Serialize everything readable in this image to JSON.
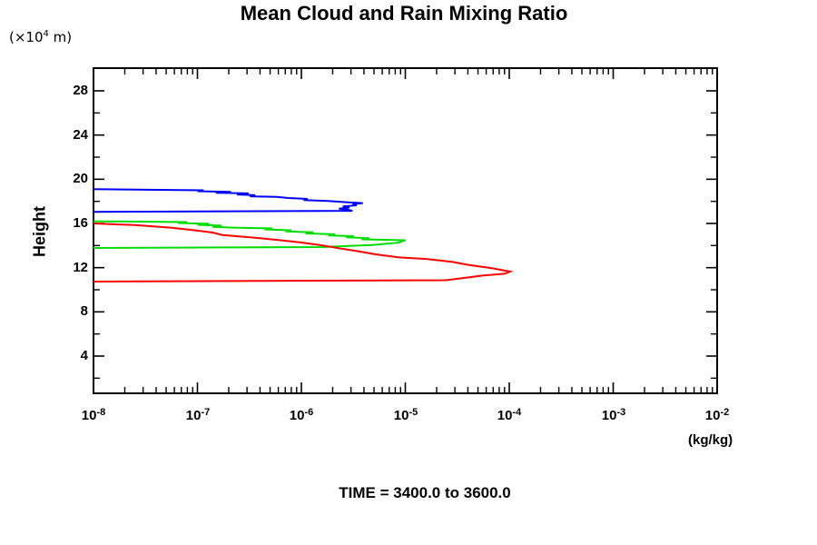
{
  "chart_data": {
    "type": "line",
    "title": "Mean Cloud and Rain Mixing Ratio",
    "annotation": "TIME = 3400.0 to 3600.0",
    "y_axis": {
      "label": "Height",
      "scale_prefix": "(×10",
      "scale_exp": "4",
      "scale_suffix": " m)",
      "major_ticks": [
        4,
        8,
        12,
        16,
        20,
        24,
        28
      ],
      "minor_ticks": [
        2,
        6,
        10,
        14,
        18,
        22,
        26
      ],
      "range": [
        0.6,
        30
      ]
    },
    "x_axis": {
      "unit_label": "(kg/kg)",
      "scale": "log",
      "base": "10",
      "tick_exponents": [
        -8,
        -7,
        -6,
        -5,
        -4,
        -3,
        -2
      ],
      "minor_multiples": [
        2,
        3,
        4,
        5,
        6,
        7,
        8,
        9
      ],
      "range": [
        1e-08,
        0.01
      ]
    },
    "axis_color": "#000000",
    "series": [
      {
        "name": "blue",
        "color": "#0000ff",
        "points": [
          [
            1e-08,
            19.1
          ],
          [
            1.15e-07,
            19.0
          ],
          [
            1e-07,
            18.92
          ],
          [
            2.1e-07,
            18.86
          ],
          [
            1.5e-07,
            18.78
          ],
          [
            3.1e-07,
            18.72
          ],
          [
            2.4e-07,
            18.62
          ],
          [
            3.6e-07,
            18.56
          ],
          [
            3.2e-07,
            18.46
          ],
          [
            5.8e-07,
            18.4
          ],
          [
            7.5e-07,
            18.3
          ],
          [
            1.15e-06,
            18.22
          ],
          [
            1.05e-06,
            18.12
          ],
          [
            1.8e-06,
            18.04
          ],
          [
            2.5e-06,
            17.94
          ],
          [
            3.9e-06,
            17.84
          ],
          [
            3.1e-06,
            17.74
          ],
          [
            3.4e-06,
            17.64
          ],
          [
            2.5e-06,
            17.54
          ],
          [
            2.9e-06,
            17.44
          ],
          [
            2.3e-06,
            17.34
          ],
          [
            2.8e-06,
            17.24
          ],
          [
            3.1e-06,
            17.14
          ],
          [
            1e-08,
            17.05
          ]
        ]
      },
      {
        "name": "green",
        "color": "#00dd00",
        "points": [
          [
            1e-08,
            16.2
          ],
          [
            8e-08,
            16.12
          ],
          [
            6.5e-08,
            16.04
          ],
          [
            1.3e-07,
            15.97
          ],
          [
            1e-07,
            15.88
          ],
          [
            1.7e-07,
            15.8
          ],
          [
            1.4e-07,
            15.7
          ],
          [
            2.2e-07,
            15.62
          ],
          [
            5.3e-07,
            15.55
          ],
          [
            4.4e-07,
            15.46
          ],
          [
            8e-07,
            15.38
          ],
          [
            7e-07,
            15.28
          ],
          [
            1.3e-06,
            15.2
          ],
          [
            1.1e-06,
            15.1
          ],
          [
            2.1e-06,
            15.02
          ],
          [
            1.8e-06,
            14.92
          ],
          [
            3.2e-06,
            14.84
          ],
          [
            2.7e-06,
            14.74
          ],
          [
            4.5e-06,
            14.66
          ],
          [
            3.8e-06,
            14.56
          ],
          [
            1e-05,
            14.48
          ],
          [
            8.5e-06,
            14.26
          ],
          [
            4.8e-06,
            14.04
          ],
          [
            2.4e-06,
            13.94
          ],
          [
            1.6e-06,
            13.86
          ],
          [
            1e-08,
            13.78
          ]
        ]
      },
      {
        "name": "red",
        "color": "#ff0000",
        "points": [
          [
            1e-08,
            16.0
          ],
          [
            2.5e-08,
            15.85
          ],
          [
            5.5e-08,
            15.62
          ],
          [
            9e-08,
            15.4
          ],
          [
            1.4e-07,
            15.18
          ],
          [
            1.74e-07,
            14.96
          ],
          [
            3.5e-07,
            14.72
          ],
          [
            6e-07,
            14.5
          ],
          [
            9.6e-07,
            14.3
          ],
          [
            1.5e-06,
            14.05
          ],
          [
            2.3e-06,
            13.76
          ],
          [
            3.4e-06,
            13.5
          ],
          [
            5.1e-06,
            13.21
          ],
          [
            8.7e-06,
            12.93
          ],
          [
            1.6e-05,
            12.79
          ],
          [
            2.8e-05,
            12.52
          ],
          [
            4.1e-05,
            12.24
          ],
          [
            6.6e-05,
            11.97
          ],
          [
            0.000102,
            11.64
          ],
          [
            9e-05,
            11.45
          ],
          [
            5.5e-05,
            11.28
          ],
          [
            3.9e-05,
            11.1
          ],
          [
            2.45e-05,
            10.86
          ],
          [
            1e-08,
            10.74
          ]
        ]
      }
    ]
  }
}
